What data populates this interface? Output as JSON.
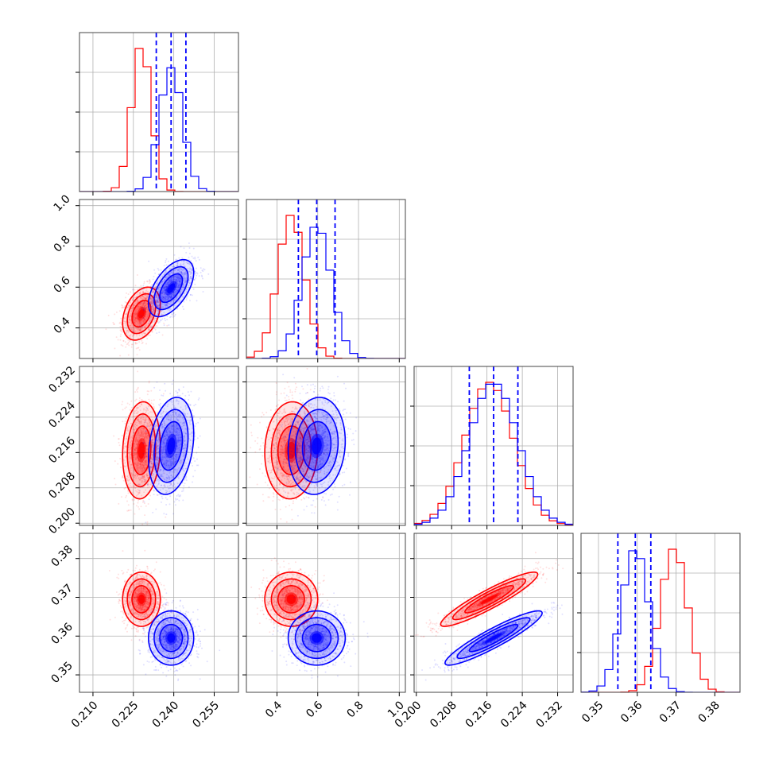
{
  "colors": {
    "series_a": "#ff0000",
    "series_b": "#0000ff"
  },
  "chart_data": {
    "type": "corner",
    "parameters": 4,
    "grid": true,
    "series": [
      {
        "color": "#ff0000",
        "mean": [
          0.228,
          0.47,
          0.2165,
          0.3695
        ],
        "sd": [
          0.0035,
          0.065,
          0.0055,
          0.0035
        ],
        "corr": [
          [
            1,
            0.35,
            0.1,
            0.0
          ],
          [
            0.35,
            1,
            0.05,
            0.0
          ],
          [
            0.1,
            0.05,
            1,
            0.92
          ],
          [
            0.0,
            0.0,
            0.92,
            1
          ]
        ]
      },
      {
        "color": "#0000ff",
        "mean": [
          0.239,
          0.595,
          0.2175,
          0.3595
        ],
        "sd": [
          0.0042,
          0.07,
          0.0055,
          0.0035
        ],
        "corr": [
          [
            1,
            0.55,
            0.25,
            0.0
          ],
          [
            0.55,
            1,
            0.1,
            0.0
          ],
          [
            0.25,
            0.1,
            1,
            0.92
          ],
          [
            0.0,
            0.0,
            0.92,
            1
          ]
        ]
      }
    ],
    "quantile_lines": {
      "color": "#0000ff",
      "style": "dashed",
      "values": [
        [
          0.2335,
          0.239,
          0.2445
        ],
        [
          0.505,
          0.595,
          0.685
        ],
        [
          0.212,
          0.2175,
          0.223
        ],
        [
          0.355,
          0.3595,
          0.3635
        ]
      ]
    },
    "axes": [
      {
        "range": [
          0.205,
          0.264
        ],
        "ticks": [
          0.21,
          0.225,
          0.24,
          0.255
        ],
        "tick_labels": [
          "0.210",
          "0.225",
          "0.240",
          "0.255"
        ]
      },
      {
        "range": [
          0.25,
          1.03
        ],
        "ticks": [
          0.4,
          0.6,
          0.8,
          1.0
        ],
        "tick_labels": [
          "0.4",
          "0.6",
          "0.8",
          "1.0"
        ]
      },
      {
        "range": [
          0.1995,
          0.2355
        ],
        "ticks": [
          0.2,
          0.208,
          0.216,
          0.224,
          0.232
        ],
        "tick_labels": [
          "0.200",
          "0.208",
          "0.216",
          "0.224",
          "0.232"
        ]
      },
      {
        "range": [
          0.3455,
          0.3865
        ],
        "ticks": [
          0.35,
          0.36,
          0.37,
          0.38
        ],
        "tick_labels": [
          "0.35",
          "0.36",
          "0.37",
          "0.38"
        ]
      }
    ],
    "contour_levels": [
      0.5,
      1.0,
      1.5,
      2.0
    ],
    "histogram_bins": 20
  }
}
